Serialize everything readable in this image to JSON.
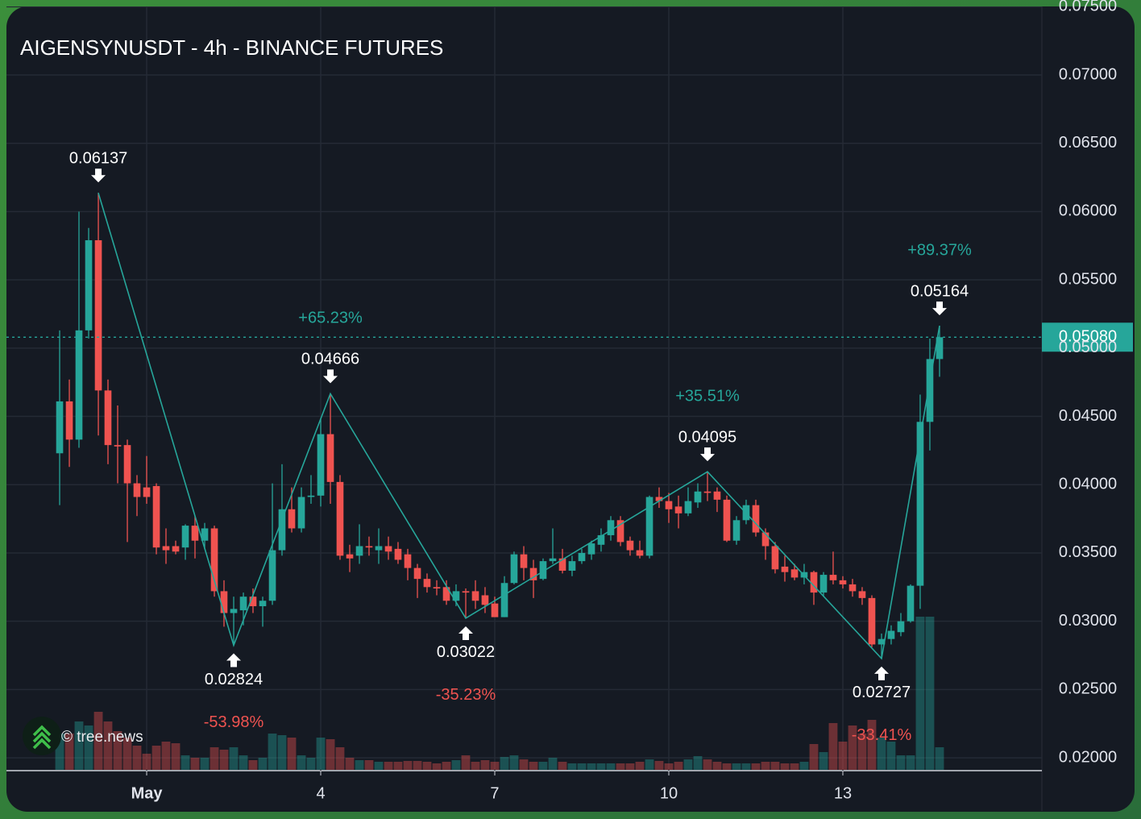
{
  "chart_data": {
    "type": "candlestick",
    "title": "AIGENSYNUSDT - 4h - BINANCE FUTURES",
    "watermark": "© tree.news",
    "up_color": "#26a69a",
    "down_color": "#ef5350",
    "grid": true,
    "xlim": [
      -1.417,
      16.431
    ],
    "xticks": [
      {
        "value": 1,
        "label": "May"
      },
      4,
      7,
      10,
      13
    ],
    "ylim": [
      0.01906,
      0.07502
    ],
    "yticks": [
      {
        "value": 0.02,
        "label": "0.02000"
      },
      {
        "value": 0.025,
        "label": "0.02500"
      },
      {
        "value": 0.03,
        "label": "0.03000"
      },
      {
        "value": 0.035,
        "label": "0.03500"
      },
      {
        "value": 0.04,
        "label": "0.04000"
      },
      {
        "value": 0.045,
        "label": "0.04500"
      },
      {
        "value": 0.05,
        "label": "0.05000"
      },
      {
        "value": 0.055,
        "label": "0.05500"
      },
      {
        "value": 0.06,
        "label": "0.06000"
      },
      {
        "value": 0.065,
        "label": "0.06500"
      },
      {
        "value": 0.07,
        "label": "0.07000"
      },
      {
        "value": 0.075,
        "label": "0.07500"
      }
    ],
    "x": [
      -0.5,
      -0.333,
      -0.167,
      0,
      0.167,
      0.333,
      0.5,
      0.667,
      0.833,
      1,
      1.167,
      1.333,
      1.5,
      1.667,
      1.833,
      2,
      2.167,
      2.333,
      2.5,
      2.667,
      2.833,
      3,
      3.167,
      3.333,
      3.5,
      3.667,
      3.833,
      4,
      4.167,
      4.333,
      4.5,
      4.667,
      4.833,
      5,
      5.167,
      5.333,
      5.5,
      5.667,
      5.833,
      6,
      6.167,
      6.333,
      6.5,
      6.667,
      6.833,
      7,
      7.167,
      7.333,
      7.5,
      7.667,
      7.833,
      8,
      8.167,
      8.333,
      8.5,
      8.667,
      8.833,
      9,
      9.167,
      9.333,
      9.5,
      9.667,
      9.833,
      10,
      10.167,
      10.333,
      10.5,
      10.667,
      10.833,
      11,
      11.167,
      11.333,
      11.5,
      11.667,
      11.833,
      12,
      12.167,
      12.333,
      12.5,
      12.667,
      12.833,
      13,
      13.167,
      13.333,
      13.5,
      13.667,
      13.833,
      14,
      14.167,
      14.333,
      14.5,
      14.667
    ],
    "open": [
      0.0423,
      0.0461,
      0.0433,
      0.0513,
      0.0579,
      0.0469,
      0.0429,
      0.0429,
      0.0401,
      0.0398,
      0.0399,
      0.0355,
      0.0355,
      0.0354,
      0.037,
      0.0359,
      0.0368,
      0.0322,
      0.0306,
      0.0308,
      0.0318,
      0.0311,
      0.0315,
      0.0352,
      0.0382,
      0.0368,
      0.0391,
      0.0392,
      0.0437,
      0.0402,
      0.0349,
      0.0348,
      0.0355,
      0.0352,
      0.0355,
      0.0353,
      0.0349,
      0.0339,
      0.0331,
      0.0325,
      0.0325,
      0.0315,
      0.0322,
      0.0322,
      0.0319,
      0.0313,
      0.0303,
      0.0328,
      0.0349,
      0.0339,
      0.0331,
      0.0344,
      0.0346,
      0.0337,
      0.0344,
      0.0349,
      0.0356,
      0.0363,
      0.0374,
      0.0359,
      0.0352,
      0.0348,
      0.0391,
      0.0388,
      0.0384,
      0.0379,
      0.0387,
      0.0395,
      0.0395,
      0.0389,
      0.0359,
      0.0374,
      0.0385,
      0.0365,
      0.0355,
      0.034,
      0.0338,
      0.0332,
      0.0336,
      0.0321,
      0.0334,
      0.033,
      0.0327,
      0.0322,
      0.0317,
      0.0283,
      0.0287,
      0.0292,
      0.03,
      0.0326,
      0.0446,
      0.0492
    ],
    "high": [
      0.0513,
      0.0477,
      0.06,
      0.0588,
      0.06137,
      0.0477,
      0.0458,
      0.0433,
      0.0407,
      0.0421,
      0.0401,
      0.0368,
      0.0359,
      0.0371,
      0.0377,
      0.0372,
      0.037,
      0.033,
      0.0318,
      0.0321,
      0.0324,
      0.0318,
      0.0401,
      0.0415,
      0.0398,
      0.0398,
      0.0407,
      0.0448,
      0.04666,
      0.0407,
      0.0356,
      0.0371,
      0.0362,
      0.0368,
      0.0362,
      0.0358,
      0.0353,
      0.0342,
      0.0335,
      0.033,
      0.033,
      0.0327,
      0.0324,
      0.033,
      0.0325,
      0.0318,
      0.0333,
      0.0351,
      0.0355,
      0.0345,
      0.0346,
      0.0368,
      0.0353,
      0.0348,
      0.0353,
      0.0359,
      0.0368,
      0.0377,
      0.0377,
      0.0362,
      0.0359,
      0.0392,
      0.0398,
      0.0394,
      0.0392,
      0.0398,
      0.0401,
      0.04095,
      0.0398,
      0.0392,
      0.0377,
      0.0389,
      0.0389,
      0.0368,
      0.0358,
      0.0348,
      0.0342,
      0.0342,
      0.0337,
      0.0336,
      0.0351,
      0.0333,
      0.0331,
      0.0325,
      0.0319,
      0.0291,
      0.0297,
      0.0306,
      0.0327,
      0.0466,
      0.0507,
      0.05164
    ],
    "low": [
      0.0385,
      0.0413,
      0.0427,
      0.0507,
      0.0436,
      0.0415,
      0.0401,
      0.0358,
      0.0377,
      0.0386,
      0.0349,
      0.0342,
      0.0349,
      0.0345,
      0.0346,
      0.0353,
      0.0318,
      0.0296,
      0.02824,
      0.0297,
      0.0306,
      0.0296,
      0.0312,
      0.0348,
      0.0365,
      0.0365,
      0.0386,
      0.0384,
      0.0386,
      0.0345,
      0.0336,
      0.0342,
      0.0348,
      0.0342,
      0.0345,
      0.0342,
      0.033,
      0.0317,
      0.0321,
      0.0319,
      0.0312,
      0.0311,
      0.03022,
      0.0309,
      0.0306,
      0.0303,
      0.0303,
      0.0327,
      0.033,
      0.0317,
      0.033,
      0.0342,
      0.0335,
      0.0333,
      0.0342,
      0.0345,
      0.0351,
      0.0359,
      0.0355,
      0.0348,
      0.0346,
      0.0346,
      0.0383,
      0.0372,
      0.0368,
      0.0377,
      0.0383,
      0.0388,
      0.038,
      0.0358,
      0.0356,
      0.0371,
      0.0362,
      0.0345,
      0.0335,
      0.0329,
      0.033,
      0.0327,
      0.0312,
      0.0318,
      0.0327,
      0.0324,
      0.0318,
      0.0312,
      0.0281,
      0.02727,
      0.0283,
      0.0289,
      0.0299,
      0.0309,
      0.0425,
      0.0479
    ],
    "close": [
      0.0461,
      0.0433,
      0.0513,
      0.0579,
      0.0469,
      0.0429,
      0.0428,
      0.0401,
      0.0391,
      0.0391,
      0.0354,
      0.0352,
      0.0351,
      0.037,
      0.0359,
      0.0368,
      0.0322,
      0.0306,
      0.0309,
      0.0318,
      0.0311,
      0.0315,
      0.0352,
      0.0382,
      0.0368,
      0.0391,
      0.0392,
      0.0437,
      0.0402,
      0.0348,
      0.0346,
      0.0355,
      0.0354,
      0.0355,
      0.0351,
      0.0345,
      0.0339,
      0.0331,
      0.0325,
      0.0324,
      0.0315,
      0.0322,
      0.0321,
      0.0315,
      0.0312,
      0.0303,
      0.0328,
      0.0349,
      0.0339,
      0.033,
      0.0344,
      0.0346,
      0.0337,
      0.0344,
      0.035,
      0.0357,
      0.0363,
      0.0374,
      0.0358,
      0.0352,
      0.0348,
      0.0391,
      0.0388,
      0.0382,
      0.0379,
      0.0388,
      0.0395,
      0.0394,
      0.0389,
      0.0359,
      0.0374,
      0.0385,
      0.0365,
      0.0355,
      0.0338,
      0.0336,
      0.0332,
      0.0336,
      0.0321,
      0.0334,
      0.033,
      0.0327,
      0.0322,
      0.0317,
      0.0283,
      0.0287,
      0.0293,
      0.03,
      0.0326,
      0.0446,
      0.0492,
      0.0508
    ],
    "volume": [
      45,
      45,
      60,
      55,
      72,
      60,
      48,
      40,
      30,
      20,
      30,
      35,
      33,
      18,
      15,
      15,
      28,
      25,
      28,
      18,
      12,
      15,
      45,
      43,
      40,
      18,
      15,
      40,
      38,
      28,
      15,
      12,
      12,
      10,
      10,
      10,
      11,
      11,
      10,
      8,
      10,
      12,
      18,
      10,
      12,
      10,
      16,
      18,
      13,
      10,
      10,
      15,
      10,
      8,
      8,
      8,
      8,
      8,
      8,
      8,
      10,
      13,
      11,
      8,
      10,
      13,
      17,
      13,
      10,
      8,
      8,
      8,
      8,
      10,
      10,
      8,
      8,
      10,
      32,
      22,
      58,
      35,
      55,
      45,
      62,
      40,
      35,
      18,
      18,
      190,
      190,
      28
    ],
    "pivots": [
      {
        "x": 0.167,
        "value": 0.06137
      },
      {
        "x": 2.5,
        "value": 0.02824
      },
      {
        "x": 4.167,
        "value": 0.04666
      },
      {
        "x": 6.5,
        "value": 0.03022
      },
      {
        "x": 10.667,
        "value": 0.04095
      },
      {
        "x": 13.667,
        "value": 0.02727
      },
      {
        "x": 14.667,
        "value": 0.05164
      }
    ],
    "swings": [
      "-53.98%",
      "+65.23%",
      "-35.23%",
      "+35.51%",
      "-33.41%",
      "+89.37%"
    ],
    "last_price": {
      "value": 0.0508,
      "label": "0.05080"
    }
  }
}
